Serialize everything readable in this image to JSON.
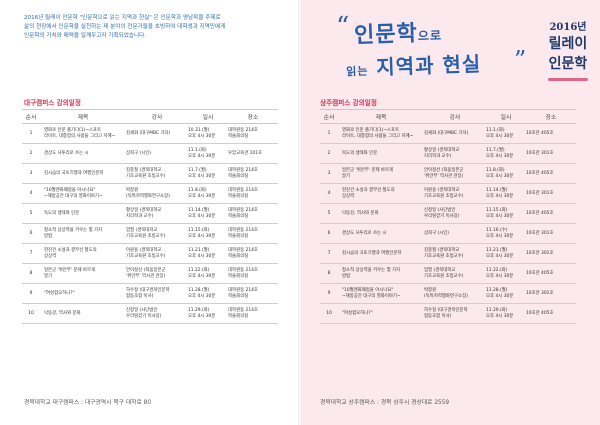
{
  "left": {
    "intro": [
      "2016년 릴레이 인문학 \"인문학으로 읽는 지역과 현실\" 은 인문학과 영남학을 주제로",
      "삶의 현장에서 인문학을 실천하는 제 분야의 전문가들을 초빙하여 대학생과 지역민에게",
      "인문학의 가치와 매력을 일깨우고자 기획되었습니다."
    ],
    "section_title": "대구캠퍼스 강의일정",
    "headers": {
      "no": "순서",
      "title": "제목",
      "lecturer": "강사",
      "date": "일시",
      "place": "장소"
    },
    "rows": [
      {
        "no": "1",
        "title": [
          "영화로 인문 즐기다(1)~스포트",
          "라이트, 대통령의 사람들 그리고 지혜~"
        ],
        "lecturer": [
          "김세화 (대구MBC 기자)"
        ],
        "date": [
          "10.31.(월)",
          "오후 4시 30분"
        ],
        "place": [
          "대학원동 214호",
          "학술회의실"
        ]
      },
      {
        "no": "2",
        "title": [
          "경상도 사투리로 쓰는 시"
        ],
        "lecturer": [
          "상희구 (시인)"
        ],
        "date": [
          "11.1.(화)",
          "오후 4시 30분"
        ],
        "place": [
          "우암교육관 101호"
        ]
      },
      {
        "no": "3",
        "title": [
          "김시습의 국토기행과 여행인문학"
        ],
        "lecturer": [
          "김종철 (경북대학교",
          "기초교육원 초빙교수)"
        ],
        "date": [
          "11.7.(월)",
          "오후 4시 30분"
        ],
        "place": [
          "대학원동 214호",
          "학술회의실"
        ]
      },
      {
        "no": "4",
        "title": [
          "\"10월엔화폐정을 아시나요\"",
          "~해방공간 대구의 영화이야기~"
        ],
        "lecturer": [
          "박창원",
          "(독특저력행화연구소장)"
        ],
        "date": [
          "11.8.(화)",
          "오후 4시 30분"
        ],
        "place": [
          "대학원동 214호",
          "학술회의실"
        ]
      },
      {
        "no": "5",
        "title": [
          "독도의 생태와 인문"
        ],
        "lecturer": [
          "황상일 (경북대학교",
          "지리학과 교수)"
        ],
        "date": [
          "11.14.(월)",
          "오후 4시 30분"
        ],
        "place": [
          "대학원동 214호",
          "학술회의실"
        ]
      },
      {
        "no": "6",
        "title": [
          "청소적 상상력을 키우는 몇 가지",
          "방법"
        ],
        "lecturer": [
          "엄필 (경북대학교",
          "기초교육원 초빙교수)"
        ],
        "date": [
          "11.15.(화)",
          "오후 4시 30분"
        ],
        "place": [
          "대학원동 214호",
          "학술회의실"
        ]
      },
      {
        "no": "7",
        "title": [
          "현진건 소설과 결부선 철도의",
          "상상력"
        ],
        "lecturer": [
          "이원용 (경북대학교",
          "기초교육원 초빙교수)"
        ],
        "date": [
          "11.21.(월)",
          "오후 4시 30분"
        ],
        "place": [
          "대학원동 214호",
          "학술회의실"
        ]
      },
      {
        "no": "8",
        "title": [
          "일본군 '위안부' 문제 바르게",
          "알기"
        ],
        "lecturer": [
          "안이정선 (희움일본군",
          "'위안부' 역사관 관장)"
        ],
        "date": [
          "11.22.(화)",
          "오후 4시 30분"
        ],
        "place": [
          "대학원동 214호",
          "학술회의실"
        ]
      },
      {
        "no": "9",
        "title": [
          "\"여성험오하니?\""
        ],
        "lecturer": [
          "하수정 (대구경북인문학",
          "협동조합 이사)"
        ],
        "date": [
          "11.28.(월)",
          "오후 4시 30분"
        ],
        "place": [
          "대학원동 214호",
          "학술회의실"
        ]
      },
      {
        "no": "10",
        "title": [
          "낙동강, 역사와 문화"
        ],
        "lecturer": [
          "신정일 (사단법인",
          "우리땅걷기 이사장)"
        ],
        "date": [
          "11.29.(화)",
          "오후 4시 30분"
        ],
        "place": [
          "대학원동 214호",
          "학술회의실"
        ]
      }
    ],
    "footer": "경북대학교 대구캠퍼스 : 대구광역시 북구 대학로 80"
  },
  "right": {
    "banner": {
      "line1_big": "인문학",
      "line1_small": "으로",
      "line2_small": "읽는",
      "line2_big": "지역과 현실",
      "open_quote": "“",
      "close_quote": "”"
    },
    "relay": {
      "r1": "2016년",
      "r2": "릴레이",
      "r3": "인문학"
    },
    "section_title": "상주캠퍼스 강의일정",
    "headers": {
      "no": "순서",
      "title": "제목",
      "lecturer": "강사",
      "date": "일시",
      "place": "장소"
    },
    "rows": [
      {
        "no": "1",
        "title": [
          "영화로 인문 즐기다(1)~스포트",
          "라이트, 대통령의 사람들 그리고 지혜~"
        ],
        "lecturer": [
          "김세화 (대구MBC 기자)"
        ],
        "date": [
          "11.1.(화)",
          "오후 4시 30분"
        ],
        "place": [
          "10호관 405호"
        ]
      },
      {
        "no": "2",
        "title": [
          "독도의 생태와 인문"
        ],
        "lecturer": [
          "황상일 (경북대학교",
          "지리학과 교수)"
        ],
        "date": [
          "11.7.(월)",
          "오후 4시 30분"
        ],
        "place": [
          "10호관 301호"
        ]
      },
      {
        "no": "3",
        "title": [
          "일본군 '위안부' 문제 바르게",
          "알기"
        ],
        "lecturer": [
          "안이정선 (희움일본군",
          "'위안부' 역사관 관장)"
        ],
        "date": [
          "11.8.(화)",
          "오후 4시 30분"
        ],
        "place": [
          "10호관 405호"
        ]
      },
      {
        "no": "4",
        "title": [
          "현진건 소설과 결부선 철도의",
          "상상력"
        ],
        "lecturer": [
          "이원용 (경북대학교",
          "기초교육원 초빙교수)"
        ],
        "date": [
          "11.14.(월)",
          "오후 4시 30분"
        ],
        "place": [
          "10호관 301호"
        ]
      },
      {
        "no": "5",
        "title": [
          "낙동강, 역사와 문화"
        ],
        "lecturer": [
          "신정일 (사단법인",
          "우리땅걷기 이사장)"
        ],
        "date": [
          "11.15.(화)",
          "오후 4시 30분"
        ],
        "place": [
          "10호관 405호"
        ]
      },
      {
        "no": "6",
        "title": [
          "경상도 사투리로 쓰는 시"
        ],
        "lecturer": [
          "상희구 (시인)"
        ],
        "date": [
          "11.16.(수)",
          "오후 4시 30분"
        ],
        "place": [
          "10호관 301호"
        ]
      },
      {
        "no": "7",
        "title": [
          "김시습의 국토기행과 여행인문학"
        ],
        "lecturer": [
          "김종철 (경북대학교",
          "기초교육원 초빙교수)"
        ],
        "date": [
          "11.21.(월)",
          "오후 4시 30분"
        ],
        "place": [
          "10호관 301호"
        ]
      },
      {
        "no": "8",
        "title": [
          "청소적 상상력을 키우는 몇 가지",
          "방법"
        ],
        "lecturer": [
          "엄필 (경북대학교",
          "기초교육원 초빙교수)"
        ],
        "date": [
          "11.22.(화)",
          "오후 4시 30분"
        ],
        "place": [
          "10호관 405호"
        ]
      },
      {
        "no": "9",
        "title": [
          "\"10월엔화폐정을 아시나요\"",
          "~해방공간 대구의 영화이야기~"
        ],
        "lecturer": [
          "박창원",
          "(독특저력행화연구소장)"
        ],
        "date": [
          "11.28.(월)",
          "오후 4시 30분"
        ],
        "place": [
          "10호관 301호"
        ]
      },
      {
        "no": "10",
        "title": [
          "\"여성험오하니?\""
        ],
        "lecturer": [
          "하수정 (대구경북인문학",
          "협동조합 이사)"
        ],
        "date": [
          "11.29.(화)",
          "오후 4시 30분"
        ],
        "place": [
          "10호관 405호"
        ]
      }
    ],
    "footer": "경북대학교 상주캠퍼스 : 경북 상주시 경상대로 2559"
  }
}
